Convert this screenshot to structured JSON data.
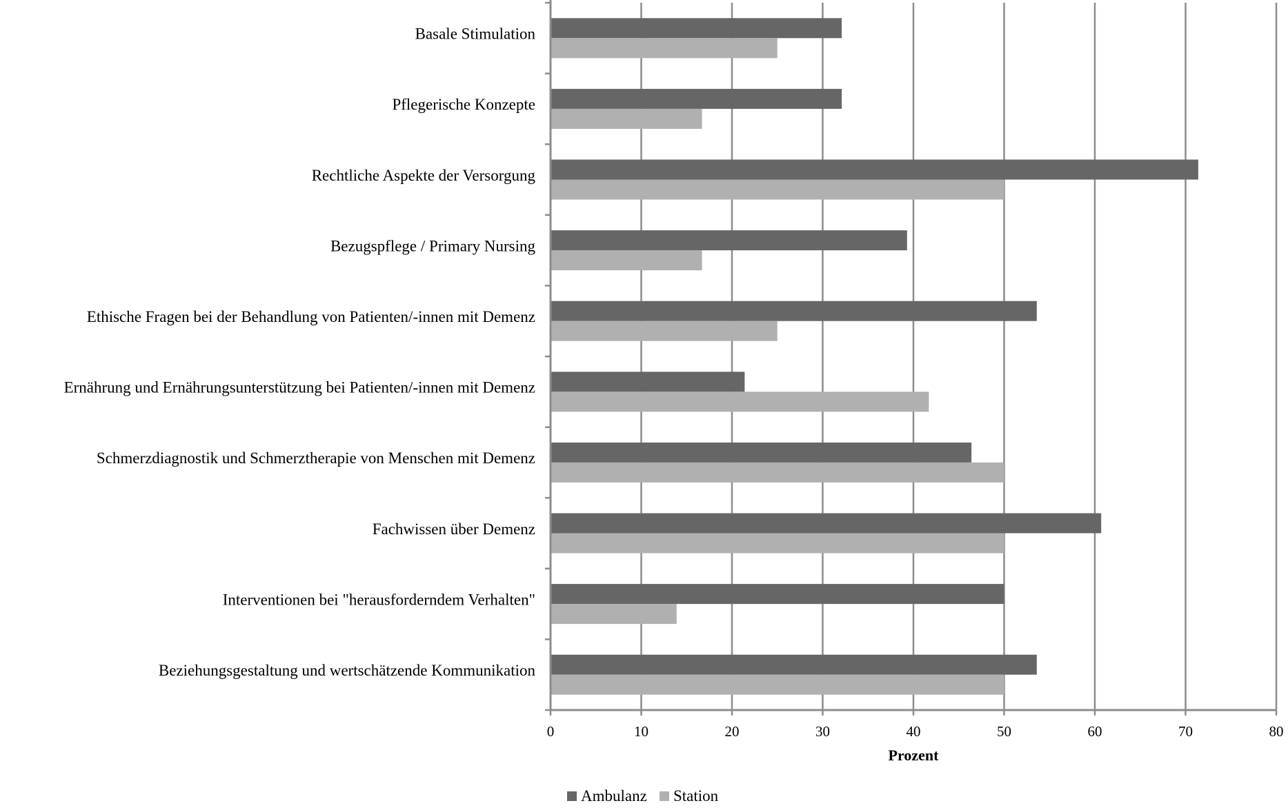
{
  "chart_data": {
    "type": "bar",
    "orientation": "horizontal",
    "title": "",
    "xlabel": "Prozent",
    "ylabel": "",
    "xlim": [
      0,
      80
    ],
    "xticks": [
      0,
      10,
      20,
      30,
      40,
      50,
      60,
      70,
      80
    ],
    "grid": "vertical",
    "legend_position": "bottom-center",
    "categories": [
      "Basale Stimulation",
      "Pflegerische Konzepte",
      "Rechtliche Aspekte der Versorgung",
      "Bezugspflege / Primary Nursing",
      "Ethische Fragen bei der Behandlung von Patienten/-innen mit Demenz",
      "Ernährung und Ernährungsunterstützung bei Patienten/-innen mit Demenz",
      "Schmerzdiagnostik und Schmerztherapie von Menschen mit Demenz",
      "Fachwissen über Demenz",
      "Interventionen bei \"herausforderndem Verhalten\"",
      "Beziehungsgestaltung und wertschätzende Kommunikation"
    ],
    "series": [
      {
        "name": "Ambulanz",
        "color": "#666666",
        "values": [
          32.1,
          32.1,
          71.4,
          39.3,
          53.6,
          21.4,
          46.4,
          60.7,
          50.0,
          53.6
        ]
      },
      {
        "name": "Station",
        "color": "#b0b0b0",
        "values": [
          25.0,
          16.7,
          50.0,
          16.7,
          25.0,
          41.7,
          50.0,
          50.0,
          13.9,
          50.0
        ]
      }
    ]
  }
}
